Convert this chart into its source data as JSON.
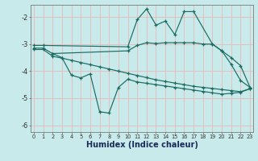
{
  "xlabel": "Humidex (Indice chaleur)",
  "background_color": "#c8eaea",
  "grid_color": "#e8b8b8",
  "line_color": "#1a6b62",
  "xlim": [
    -0.3,
    23.3
  ],
  "ylim": [
    -6.25,
    -1.55
  ],
  "yticks": [
    -6,
    -5,
    -4,
    -3,
    -2
  ],
  "xticks": [
    0,
    1,
    2,
    3,
    4,
    5,
    6,
    7,
    8,
    9,
    10,
    11,
    12,
    13,
    14,
    15,
    16,
    17,
    18,
    19,
    20,
    21,
    22,
    23
  ],
  "line1_x": [
    0,
    1,
    10,
    11,
    12,
    13,
    14,
    15,
    16,
    17,
    19,
    20,
    21,
    22,
    23
  ],
  "line1_y": [
    -3.05,
    -3.05,
    -3.1,
    -2.1,
    -1.7,
    -2.3,
    -2.15,
    -2.65,
    -1.8,
    -1.8,
    -3.0,
    -3.25,
    -3.75,
    -4.35,
    -4.6
  ],
  "line2_x": [
    0,
    1,
    2,
    10,
    11,
    12,
    13,
    14,
    15,
    16,
    17,
    18,
    19,
    20,
    21,
    22,
    23
  ],
  "line2_y": [
    -3.15,
    -3.15,
    -3.35,
    -3.25,
    -3.05,
    -2.95,
    -2.98,
    -2.95,
    -2.95,
    -2.95,
    -2.95,
    -3.0,
    -3.0,
    -3.25,
    -3.5,
    -3.8,
    -4.6
  ],
  "line3_x": [
    0,
    1,
    2,
    3,
    4,
    5,
    6,
    7,
    8,
    9,
    10,
    11,
    12,
    13,
    14,
    15,
    16,
    17,
    18,
    19,
    20,
    21,
    22,
    23
  ],
  "line3_y": [
    -3.2,
    -3.2,
    -3.45,
    -3.52,
    -3.6,
    -3.68,
    -3.76,
    -3.84,
    -3.92,
    -4.0,
    -4.08,
    -4.16,
    -4.24,
    -4.32,
    -4.38,
    -4.44,
    -4.5,
    -4.56,
    -4.6,
    -4.64,
    -4.68,
    -4.72,
    -4.76,
    -4.65
  ],
  "line4_x": [
    2,
    3,
    4,
    5,
    6,
    7,
    8,
    9,
    10,
    11,
    12,
    13,
    14,
    15,
    16,
    17,
    18,
    19,
    20,
    21,
    22,
    23
  ],
  "line4_y": [
    -3.35,
    -3.5,
    -4.15,
    -4.25,
    -4.1,
    -5.5,
    -5.55,
    -4.6,
    -4.3,
    -4.4,
    -4.45,
    -4.5,
    -4.55,
    -4.6,
    -4.65,
    -4.7,
    -4.75,
    -4.8,
    -4.85,
    -4.82,
    -4.78,
    -4.65
  ]
}
